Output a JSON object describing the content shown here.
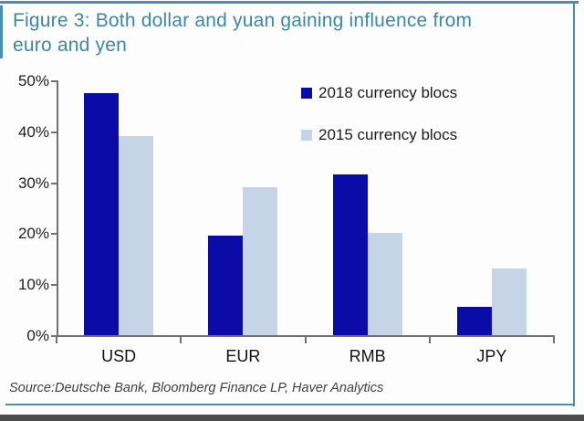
{
  "figure": {
    "title_line1": "Figure 3: Both dollar and yuan gaining influence from",
    "title_line2": "euro and yen",
    "source": "Source:Deutsche Bank, Bloomberg Finance LP, Haver Analytics"
  },
  "colors": {
    "frame_teal": "#4a8fae",
    "title_teal": "#3c86a8",
    "series_2018": "#0b0ba8",
    "series_2015": "#c6d4e8",
    "axis_gray": "#707070",
    "bottom_strip": "#4b4b4b"
  },
  "chart_data": {
    "type": "bar",
    "title": "Figure 3: Both dollar and yuan gaining influence from euro and yen",
    "categories": [
      "USD",
      "EUR",
      "RMB",
      "JPY"
    ],
    "series": [
      {
        "name": "2018 currency blocs",
        "color": "#0b0ba8",
        "values": [
          47.5,
          19.5,
          31.5,
          5.5
        ]
      },
      {
        "name": "2015 currency blocs",
        "color": "#c6d4e8",
        "values": [
          39,
          29,
          20,
          13
        ]
      }
    ],
    "xlabel": "",
    "ylabel": "",
    "ylim": [
      0,
      50
    ],
    "yticks": [
      "0%",
      "10%",
      "20%",
      "30%",
      "40%",
      "50%"
    ],
    "grid": false,
    "legend_position": "top-right"
  }
}
